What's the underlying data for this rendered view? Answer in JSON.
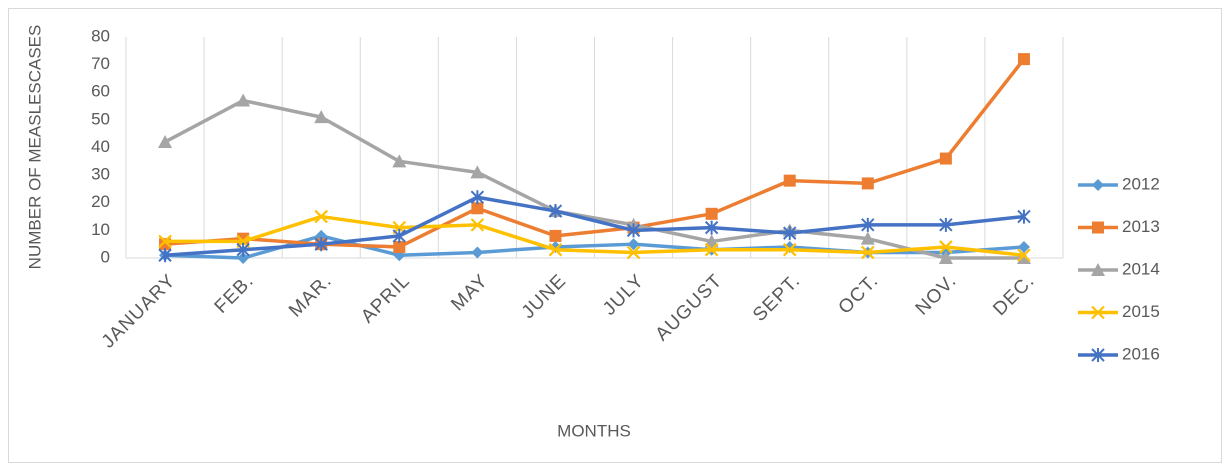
{
  "chart_data": {
    "type": "line",
    "y_label": "NUMBER OF  MEASLESCASES",
    "x_label": "MONTHS",
    "categories": [
      "JANUARY",
      "FEB.",
      "MAR.",
      "APRIL",
      "MAY",
      "JUNE",
      "JULY",
      "AUGUST",
      "SEPT.",
      "OCT.",
      "NOV.",
      "DEC."
    ],
    "series": [
      {
        "name": "2012",
        "color": "#5b9bd5",
        "marker": "diamond",
        "values": [
          1,
          0,
          8,
          1,
          2,
          4,
          5,
          3,
          4,
          2,
          2,
          4
        ]
      },
      {
        "name": "2013",
        "color": "#ed7d31",
        "marker": "square",
        "values": [
          5,
          7,
          5,
          4,
          18,
          8,
          11,
          16,
          28,
          27,
          36,
          72
        ]
      },
      {
        "name": "2014",
        "color": "#a5a5a5",
        "marker": "triangle",
        "values": [
          42,
          57,
          51,
          35,
          31,
          17,
          12,
          6,
          10,
          7,
          0,
          0
        ]
      },
      {
        "name": "2015",
        "color": "#ffc000",
        "marker": "x",
        "values": [
          6,
          6,
          15,
          11,
          12,
          3,
          2,
          3,
          3,
          2,
          4,
          1
        ]
      },
      {
        "name": "2016",
        "color": "#4472c4",
        "marker": "star",
        "values": [
          1,
          3,
          5,
          8,
          22,
          17,
          10,
          11,
          9,
          12,
          12,
          15
        ]
      }
    ],
    "ylim": [
      0,
      80
    ],
    "yticks": [
      0,
      10,
      20,
      30,
      40,
      50,
      60,
      70,
      80
    ],
    "category_grid": true,
    "legend": "right"
  }
}
